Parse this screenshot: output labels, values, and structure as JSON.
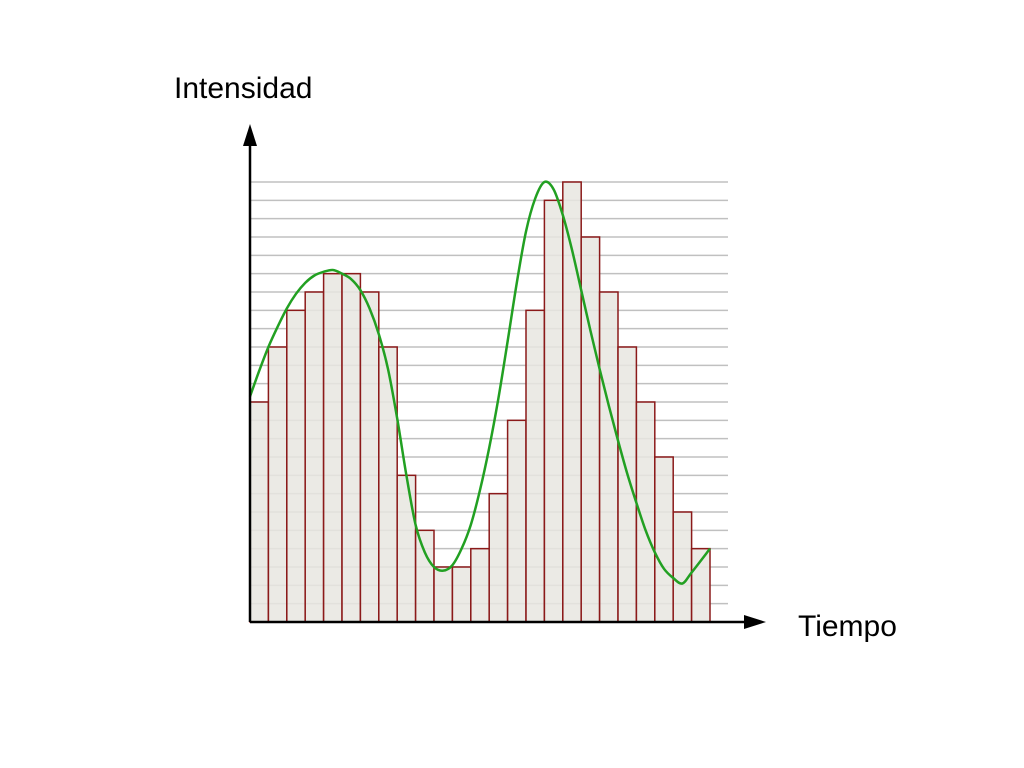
{
  "chart_data": {
    "type": "bar",
    "title": "",
    "xlabel": "Tiempo",
    "ylabel": "Intensidad",
    "levels": 24,
    "grid": true,
    "values": [
      12,
      15,
      17,
      18,
      19,
      19,
      18,
      15,
      8,
      5,
      3,
      3,
      4,
      7,
      11,
      17,
      23,
      24,
      21,
      18,
      15,
      12,
      9,
      6,
      4
    ],
    "curve": [
      [
        0,
        12.3
      ],
      [
        0.5,
        13.7
      ],
      [
        1,
        15.0
      ],
      [
        1.5,
        16.1
      ],
      [
        2,
        17.1
      ],
      [
        2.5,
        17.9
      ],
      [
        3,
        18.5
      ],
      [
        3.5,
        18.9
      ],
      [
        4,
        19.1
      ],
      [
        4.5,
        19.2
      ],
      [
        5,
        19.0
      ],
      [
        5.5,
        18.7
      ],
      [
        6,
        18.1
      ],
      [
        6.5,
        17.1
      ],
      [
        7,
        15.7
      ],
      [
        7.5,
        13.8
      ],
      [
        8,
        11.1
      ],
      [
        8.5,
        8.0
      ],
      [
        9,
        5.3
      ],
      [
        9.5,
        3.8
      ],
      [
        10,
        3.0
      ],
      [
        10.5,
        2.8
      ],
      [
        11,
        3.1
      ],
      [
        11.5,
        4.0
      ],
      [
        12,
        5.3
      ],
      [
        12.5,
        7.2
      ],
      [
        13,
        9.5
      ],
      [
        13.5,
        12.2
      ],
      [
        14,
        15.3
      ],
      [
        14.5,
        18.5
      ],
      [
        15,
        21.3
      ],
      [
        15.5,
        23.1
      ],
      [
        16,
        24.0
      ],
      [
        16.5,
        23.6
      ],
      [
        17,
        22.2
      ],
      [
        17.5,
        20.3
      ],
      [
        18,
        18.1
      ],
      [
        18.5,
        15.9
      ],
      [
        19,
        13.8
      ],
      [
        19.5,
        11.8
      ],
      [
        20,
        9.9
      ],
      [
        20.5,
        8.1
      ],
      [
        21,
        6.5
      ],
      [
        21.5,
        5.0
      ],
      [
        22,
        3.8
      ],
      [
        22.5,
        2.9
      ],
      [
        23,
        2.4
      ],
      [
        23.5,
        2.1
      ],
      [
        24,
        2.7
      ],
      [
        25,
        4.0
      ]
    ],
    "colors": {
      "bar_fill": "#e8e6e0",
      "bar_stroke": "#8b1a1a",
      "curve": "#22a022",
      "grid": "#c0c0c0",
      "axis": "#000000"
    }
  }
}
